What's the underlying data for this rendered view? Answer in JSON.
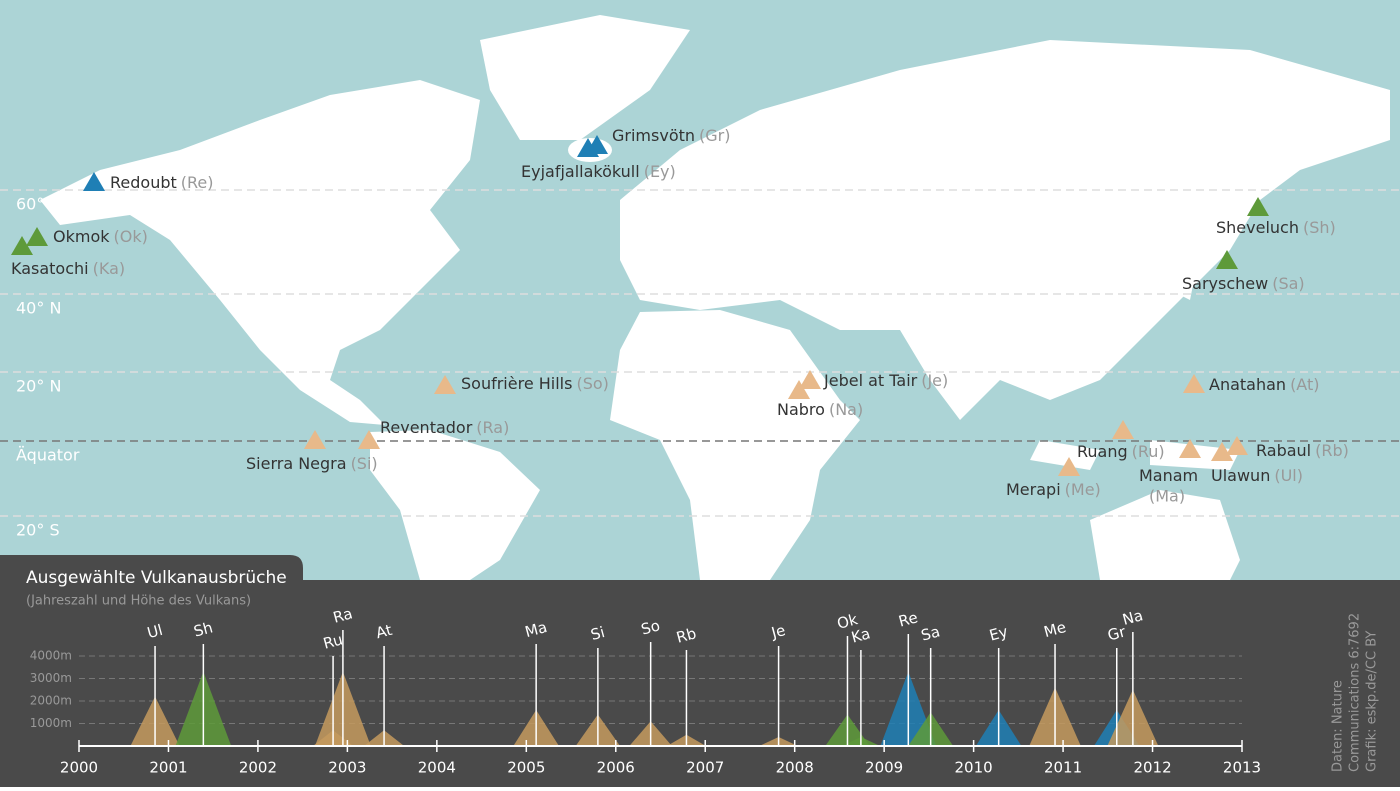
{
  "map": {
    "latitudes": [
      "60° N",
      "40° N",
      "20° N",
      "Äquator",
      "20° S"
    ],
    "volcanoes": [
      {
        "name": "Redoubt",
        "abbr": "(Re)",
        "color": "#1f7fb5"
      },
      {
        "name": "Okmok",
        "abbr": "(Ok)",
        "color": "#5e9a3a"
      },
      {
        "name": "Kasatochi",
        "abbr": "(Ka)",
        "color": "#5e9a3a"
      },
      {
        "name": "Grimsvötn",
        "abbr": "(Gr)",
        "color": "#1f7fb5"
      },
      {
        "name": "Eyjafjallakökull",
        "abbr": "(Ey)",
        "color": "#1f7fb5"
      },
      {
        "name": "Sheveluch",
        "abbr": "(Sh)",
        "color": "#5e9a3a"
      },
      {
        "name": "Saryschew",
        "abbr": "(Sa)",
        "color": "#5e9a3a"
      },
      {
        "name": "Soufrière Hills",
        "abbr": "(So)",
        "color": "#e8b98a"
      },
      {
        "name": "Reventador",
        "abbr": "(Ra)",
        "color": "#e8b98a"
      },
      {
        "name": "Sierra Negra",
        "abbr": "(Si)",
        "color": "#e8b98a"
      },
      {
        "name": "Jebel at Tair",
        "abbr": "(Je)",
        "color": "#e8b98a"
      },
      {
        "name": "Nabro",
        "abbr": "(Na)",
        "color": "#e8b98a"
      },
      {
        "name": "Anatahan",
        "abbr": "(At)",
        "color": "#e8b98a"
      },
      {
        "name": "Ruang",
        "abbr": "(Ru)",
        "color": "#e8b98a"
      },
      {
        "name": "Manam",
        "abbr": "(Ma)",
        "color": "#e8b98a"
      },
      {
        "name": "Rabaul",
        "abbr": "(Rb)",
        "color": "#e8b98a"
      },
      {
        "name": "Ulawun",
        "abbr": "(Ul)",
        "color": "#e8b98a"
      },
      {
        "name": "Merapi",
        "abbr": "(Me)",
        "color": "#e8b98a"
      }
    ]
  },
  "chart_data": {
    "type": "triangle",
    "title": "Ausgewählte Vulkanausbrüche",
    "subtitle": "(Jahreszahl und Höhe des Vulkans)",
    "labels": [
      "Ul",
      "Sh",
      "Ru",
      "Ra",
      "At",
      "Ma",
      "Si",
      "So",
      "Rb",
      "Je",
      "Ok",
      "Ka",
      "Re",
      "Sa",
      "Ey",
      "Me",
      "Gr",
      "Na"
    ],
    "x": [
      2000.85,
      2001.39,
      2002.84,
      2002.95,
      2003.41,
      2005.11,
      2005.8,
      2006.39,
      2006.79,
      2007.82,
      2008.59,
      2008.74,
      2009.27,
      2009.52,
      2010.28,
      2010.91,
      2011.6,
      2011.78
    ],
    "values": [
      2200,
      3300,
      700,
      3300,
      700,
      1600,
      1400,
      1100,
      500,
      400,
      1400,
      400,
      3300,
      1500,
      1600,
      2600,
      1600,
      2500
    ],
    "colors": [
      "#c49a5e",
      "#5e9a3a",
      "#c49a5e",
      "#c49a5e",
      "#c49a5e",
      "#c49a5e",
      "#c49a5e",
      "#c49a5e",
      "#c49a5e",
      "#c49a5e",
      "#5e9a3a",
      "#5e9a3a",
      "#1f7fb5",
      "#5e9a3a",
      "#1f7fb5",
      "#c49a5e",
      "#1f7fb5",
      "#c49a5e"
    ],
    "xlim": [
      2000,
      2013
    ],
    "xticks": [
      2000,
      2001,
      2002,
      2003,
      2004,
      2005,
      2006,
      2007,
      2008,
      2009,
      2010,
      2011,
      2012,
      2013
    ],
    "ylim": [
      0,
      4000
    ],
    "yticks": [
      {
        "value": 1000,
        "label": "1000m"
      },
      {
        "value": 2000,
        "label": "2000m"
      },
      {
        "value": 3000,
        "label": "3000m"
      },
      {
        "value": 4000,
        "label": "4000m"
      }
    ],
    "grid": true,
    "source": [
      "Daten: Nature",
      "Communications 6:7692",
      "Grafik: eskp.de/CC BY"
    ]
  }
}
